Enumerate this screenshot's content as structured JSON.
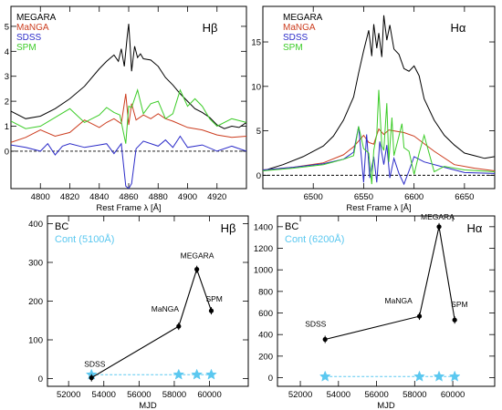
{
  "chart_data": [
    {
      "id": "hb-spectrum",
      "type": "line",
      "panel_label": "Hβ",
      "xlabel": "Rest Frame λ [Å]",
      "ylabel": "",
      "xlim": [
        4780,
        4940
      ],
      "ylim": [
        -1.5,
        5.8
      ],
      "x_ticks": [
        4800,
        4820,
        4840,
        4860,
        4880,
        4900,
        4920
      ],
      "y_ticks": [
        0,
        1,
        2,
        3,
        4,
        5
      ],
      "zero_line": 0,
      "legend_position": "top-left",
      "series": [
        {
          "name": "MEGARA",
          "color": "#000000",
          "x": [
            4780,
            4790,
            4800,
            4810,
            4820,
            4830,
            4840,
            4845,
            4850,
            4853,
            4855,
            4857,
            4859,
            4860,
            4861,
            4862,
            4863,
            4864,
            4866,
            4868,
            4870,
            4875,
            4880,
            4885,
            4890,
            4895,
            4900,
            4905,
            4910,
            4915,
            4920,
            4925,
            4930,
            4935,
            4940
          ],
          "y": [
            1.6,
            1.3,
            1.4,
            1.7,
            2.1,
            2.6,
            3.3,
            3.6,
            3.85,
            3.6,
            4.1,
            3.4,
            4.6,
            5.1,
            4.2,
            3.2,
            3.7,
            4.2,
            3.75,
            3.9,
            3.7,
            3.65,
            3.4,
            2.95,
            2.65,
            2.3,
            2.0,
            1.7,
            1.55,
            1.35,
            1.05,
            0.9,
            1.0,
            0.95,
            1.15
          ]
        },
        {
          "name": "MaNGA",
          "color": "#cc3c1e",
          "x": [
            4780,
            4790,
            4800,
            4810,
            4820,
            4830,
            4840,
            4845,
            4850,
            4855,
            4858,
            4860,
            4862,
            4865,
            4870,
            4875,
            4880,
            4885,
            4890,
            4900,
            4910,
            4920,
            4930,
            4940
          ],
          "y": [
            0.35,
            0.55,
            0.85,
            0.6,
            0.75,
            1.25,
            0.95,
            1.15,
            1.3,
            1.1,
            2.3,
            1.05,
            1.9,
            1.25,
            1.45,
            1.3,
            1.5,
            1.3,
            1.2,
            0.95,
            0.85,
            0.65,
            0.55,
            0.6
          ]
        },
        {
          "name": "SDSS",
          "color": "#2b2bc8",
          "x": [
            4780,
            4790,
            4800,
            4805,
            4810,
            4815,
            4820,
            4830,
            4840,
            4845,
            4850,
            4855,
            4858,
            4860,
            4862,
            4865,
            4870,
            4880,
            4885,
            4890,
            4895,
            4900,
            4910,
            4920,
            4930,
            4940
          ],
          "y": [
            0.25,
            0.15,
            0.0,
            0.3,
            -0.15,
            0.2,
            0.3,
            0.15,
            0.25,
            0.3,
            -0.1,
            0.3,
            -1.4,
            -1.5,
            -1.3,
            0.1,
            0.4,
            0.2,
            0.45,
            0.15,
            0.6,
            0.15,
            0.25,
            0.0,
            0.2,
            0.0
          ]
        },
        {
          "name": "SPM",
          "color": "#3ccc28",
          "x": [
            4780,
            4790,
            4800,
            4810,
            4820,
            4830,
            4840,
            4845,
            4850,
            4854,
            4858,
            4860,
            4862,
            4866,
            4870,
            4875,
            4880,
            4885,
            4890,
            4895,
            4900,
            4905,
            4910,
            4915,
            4920,
            4930,
            4940
          ],
          "y": [
            1.2,
            0.9,
            1.0,
            1.35,
            1.7,
            1.15,
            1.45,
            1.75,
            1.55,
            1.45,
            0.3,
            1.8,
            1.75,
            2.45,
            1.5,
            1.9,
            2.0,
            1.3,
            1.5,
            2.45,
            1.8,
            2.1,
            1.8,
            1.3,
            1.0,
            1.3,
            1.15
          ]
        }
      ]
    },
    {
      "id": "ha-spectrum",
      "type": "line",
      "panel_label": "Hα",
      "xlabel": "Rest Frame λ [Å]",
      "ylabel": "",
      "xlim": [
        6450,
        6680
      ],
      "ylim": [
        -1.5,
        19.0
      ],
      "x_ticks": [
        6500,
        6550,
        6600,
        6650
      ],
      "y_ticks": [
        0,
        5,
        10,
        15
      ],
      "zero_line": 0,
      "legend_position": "top-left",
      "series": [
        {
          "name": "MEGARA",
          "color": "#000000",
          "x": [
            6450,
            6470,
            6490,
            6510,
            6520,
            6530,
            6540,
            6545,
            6550,
            6555,
            6558,
            6560,
            6563,
            6565,
            6568,
            6570,
            6573,
            6576,
            6580,
            6585,
            6590,
            6595,
            6600,
            6605,
            6610,
            6620,
            6630,
            6640,
            6650,
            6660,
            6670,
            6680
          ],
          "y": [
            0.5,
            1.2,
            2.1,
            3.3,
            4.4,
            6.2,
            8.8,
            11.5,
            14.0,
            16.3,
            13.4,
            17.0,
            14.3,
            16.0,
            13.3,
            18.0,
            15.2,
            16.9,
            14.2,
            13.6,
            12.0,
            11.7,
            12.3,
            11.2,
            8.6,
            6.2,
            4.5,
            3.4,
            2.5,
            2.2,
            1.9,
            2.1
          ]
        },
        {
          "name": "MaNGA",
          "color": "#cc3c1e",
          "x": [
            6450,
            6480,
            6510,
            6530,
            6540,
            6550,
            6555,
            6560,
            6565,
            6570,
            6575,
            6580,
            6590,
            6600,
            6620,
            6640,
            6660,
            6680
          ],
          "y": [
            0.6,
            0.9,
            1.4,
            2.3,
            3.2,
            4.5,
            3.7,
            3.5,
            5.2,
            4.6,
            5.1,
            5.0,
            4.8,
            4.4,
            2.7,
            1.2,
            0.8,
            0.5
          ]
        },
        {
          "name": "SDSS",
          "color": "#2b2bc8",
          "x": [
            6450,
            6480,
            6510,
            6530,
            6540,
            6545,
            6550,
            6553,
            6556,
            6560,
            6563,
            6566,
            6570,
            6573,
            6576,
            6580,
            6585,
            6590,
            6595,
            6600,
            6610,
            6630,
            6650,
            6680
          ],
          "y": [
            0.6,
            0.9,
            1.3,
            1.8,
            2.6,
            5.5,
            -0.8,
            4.6,
            -0.3,
            2.1,
            -0.8,
            3.8,
            1.2,
            3.4,
            -0.3,
            1.9,
            0.2,
            -1.0,
            0.5,
            2.1,
            1.5,
            0.9,
            0.3,
            0.2
          ]
        },
        {
          "name": "SPM",
          "color": "#3ccc28",
          "x": [
            6450,
            6480,
            6510,
            6530,
            6540,
            6545,
            6550,
            6555,
            6558,
            6560,
            6563,
            6565,
            6568,
            6570,
            6573,
            6575,
            6578,
            6580,
            6585,
            6588,
            6590,
            6595,
            6600,
            6605,
            6610,
            6620,
            6630,
            6650,
            6680
          ],
          "y": [
            0.5,
            0.8,
            1.2,
            1.8,
            2.2,
            5.5,
            3.0,
            2.5,
            -1.0,
            2.8,
            4.6,
            9.6,
            3.3,
            2.8,
            8.1,
            1.5,
            6.5,
            2.2,
            4.4,
            5.8,
            3.1,
            2.7,
            0.1,
            2.5,
            4.5,
            0.4,
            1.0,
            0.6,
            0.4
          ]
        }
      ]
    },
    {
      "id": "hb-bc",
      "type": "line",
      "panel_label": "Hβ",
      "labels": [
        "BC",
        "Cont (5100Å)"
      ],
      "xlabel": "MJD",
      "ylabel": "",
      "xlim": [
        50800,
        62200
      ],
      "ylim": [
        -20,
        420
      ],
      "x_ticks": [
        52000,
        54000,
        56000,
        58000,
        60000
      ],
      "y_ticks": [
        0,
        100,
        200,
        300,
        400
      ],
      "series": [
        {
          "name": "BC",
          "color": "#000000",
          "x": [
            53300,
            58250,
            59280,
            60100
          ],
          "y": [
            2,
            135,
            282,
            175
          ],
          "point_labels": [
            "SDSS",
            "MaNGA",
            "MEGARA",
            "SPM"
          ]
        },
        {
          "name": "Cont (5100Å)",
          "color": "#5bc8f0",
          "x": [
            53300,
            58250,
            59280,
            60100
          ],
          "y": [
            10,
            10,
            10,
            10
          ]
        }
      ]
    },
    {
      "id": "ha-bc",
      "type": "line",
      "panel_label": "Hα",
      "labels": [
        "BC",
        "Cont (6200Å)"
      ],
      "xlabel": "MJD",
      "ylabel": "",
      "xlim": [
        50800,
        62200
      ],
      "ylim": [
        -80,
        1500
      ],
      "x_ticks": [
        52000,
        54000,
        56000,
        58000,
        60000
      ],
      "y_ticks": [
        0,
        200,
        400,
        600,
        800,
        1000,
        1200,
        1400
      ],
      "series": [
        {
          "name": "BC",
          "color": "#000000",
          "x": [
            53300,
            58250,
            59280,
            60100
          ],
          "y": [
            355,
            570,
            1400,
            535
          ],
          "point_labels": [
            "SDSS",
            "MaNGA",
            "MEGARA",
            "SPM"
          ]
        },
        {
          "name": "Cont (6200Å)",
          "color": "#5bc8f0",
          "x": [
            53300,
            58250,
            59280,
            60100
          ],
          "y": [
            10,
            10,
            10,
            10
          ]
        }
      ]
    }
  ]
}
